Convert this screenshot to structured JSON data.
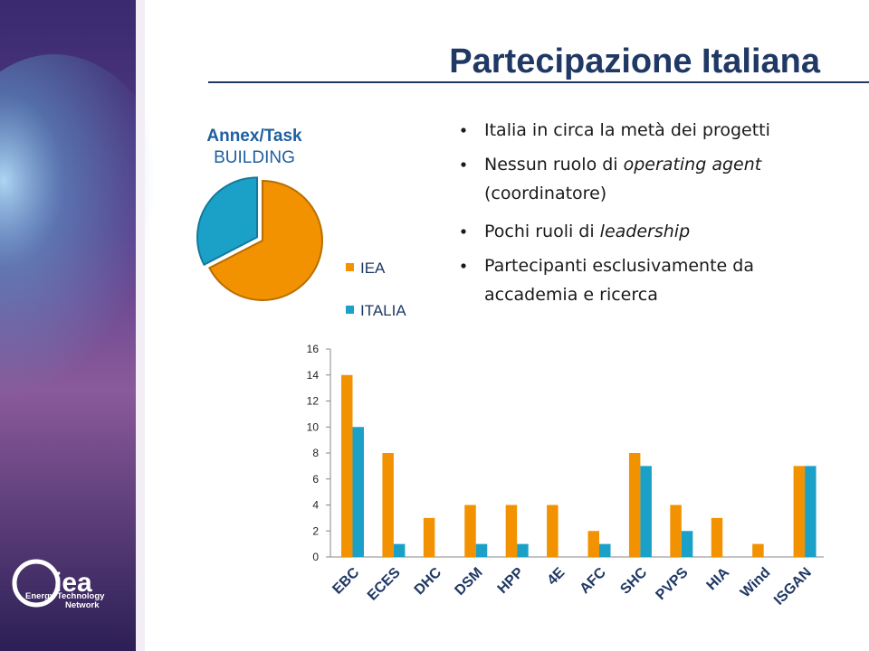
{
  "title": "Partecipazione Italiana",
  "bullets": [
    [
      [
        {
          "text": "Italia in circa la metà dei progetti"
        }
      ]
    ],
    [
      [
        {
          "text": "Nessun ruolo di "
        },
        {
          "text": "operating agent",
          "italic": true
        }
      ],
      [
        {
          "text": "(coordinatore)"
        }
      ]
    ],
    [
      [
        {
          "text": "Pochi ruoli di "
        },
        {
          "text": "leadership",
          "italic": true
        }
      ]
    ],
    [
      [
        {
          "text": "Partecipanti esclusivamente da"
        }
      ],
      [
        {
          "text": "accademia e ricerca"
        }
      ]
    ]
  ],
  "logo": {
    "brand": "iea",
    "line1": "Energy Technology",
    "line2": "Network"
  },
  "chart_data": [
    {
      "type": "pie",
      "title": [
        "Annex/Task",
        "BUILDING"
      ],
      "values": [
        62,
        30
      ],
      "colors": [
        "#f39200",
        "#1ba1c8"
      ]
    },
    {
      "type": "bar",
      "categories": [
        "EBC",
        "ECES",
        "DHC",
        "DSM",
        "HPP",
        "4E",
        "AFC",
        "SHC",
        "PVPS",
        "HIA",
        "Wind",
        "ISGAN"
      ],
      "series": [
        {
          "name": "IEA",
          "color": "#f39200",
          "values": [
            14,
            8,
            3,
            4,
            4,
            4,
            2,
            8,
            4,
            3,
            1,
            7
          ]
        },
        {
          "name": "ITALIA",
          "color": "#1ba1c8",
          "values": [
            10,
            1,
            0,
            1,
            1,
            0,
            1,
            7,
            2,
            0,
            0,
            7
          ]
        }
      ],
      "ylim": [
        0,
        16
      ],
      "yticks": [
        0,
        2,
        4,
        6,
        8,
        10,
        12,
        14,
        16
      ]
    }
  ]
}
